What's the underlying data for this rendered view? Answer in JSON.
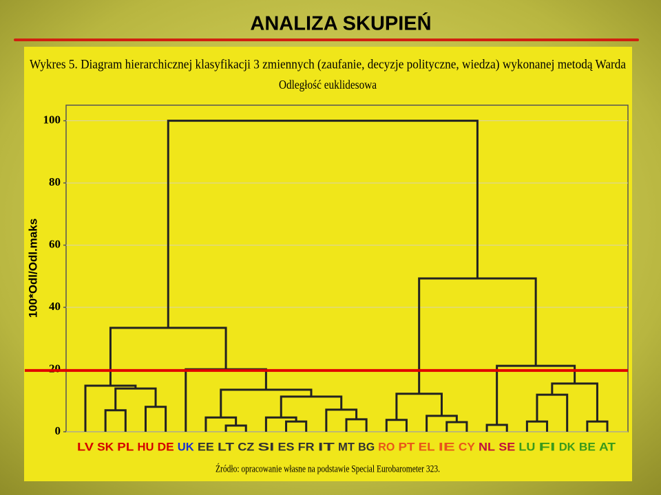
{
  "header": {
    "title": "ANALIZA SKUPIEŃ"
  },
  "chart_data": {
    "type": "dendrogram",
    "title": "Wykres 5. Diagram hierarchicznej klasyfikacji 3 zmiennych (zaufanie, decyzje polityczne, wiedza) wykonanej metodą Warda",
    "subtitle": "Odległość euklidesowa",
    "ylabel": "100*Odl/Odl.maks",
    "source": "Źródło: opracowanie własne na podstawie Special Eurobarometer 323.",
    "categories": [
      "LV",
      "SK",
      "PL",
      "HU",
      "DE",
      "UK",
      "EE",
      "LT",
      "CZ",
      "SI",
      "ES",
      "FR",
      "IT",
      "MT",
      "BG",
      "RO",
      "PT",
      "EL",
      "IE",
      "CY",
      "NL",
      "SE",
      "LU",
      "FI",
      "DK",
      "BE",
      "AT"
    ],
    "category_colors": [
      "#d40000",
      "#d40000",
      "#d40000",
      "#d40000",
      "#d40000",
      "#1a2fd0",
      "#333333",
      "#333333",
      "#333333",
      "#333333",
      "#333333",
      "#333333",
      "#333333",
      "#333333",
      "#333333",
      "#e8551a",
      "#e8551a",
      "#e8551a",
      "#e8551a",
      "#e8551a",
      "#c0103c",
      "#c0103c",
      "#3a9a1a",
      "#3a9a1a",
      "#3a9a1a",
      "#3a9a1a",
      "#3a9a1a"
    ],
    "merges": [
      {
        "children": [
          1,
          2
        ],
        "height": 6.9
      },
      {
        "children": [
          3,
          4
        ],
        "height": 8.0
      },
      {
        "children": [
          27,
          28
        ],
        "height": 13.9
      },
      {
        "children": [
          0,
          29
        ],
        "height": 14.8
      },
      {
        "children": [
          7,
          8
        ],
        "height": 2.0
      },
      {
        "children": [
          6,
          31
        ],
        "height": 4.6
      },
      {
        "children": [
          10,
          11
        ],
        "height": 3.3
      },
      {
        "children": [
          9,
          33
        ],
        "height": 4.6
      },
      {
        "children": [
          13,
          14
        ],
        "height": 4.0
      },
      {
        "children": [
          12,
          35
        ],
        "height": 7.1
      },
      {
        "children": [
          34,
          36
        ],
        "height": 11.3
      },
      {
        "children": [
          32,
          37
        ],
        "height": 13.5
      },
      {
        "children": [
          5,
          38
        ],
        "height": 20.1
      },
      {
        "children": [
          30,
          39
        ],
        "height": 33.4
      },
      {
        "children": [
          15,
          16
        ],
        "height": 3.8
      },
      {
        "children": [
          18,
          19
        ],
        "height": 3.1
      },
      {
        "children": [
          17,
          42
        ],
        "height": 5.1
      },
      {
        "children": [
          41,
          43
        ],
        "height": 12.2
      },
      {
        "children": [
          20,
          21
        ],
        "height": 2.2
      },
      {
        "children": [
          22,
          23
        ],
        "height": 3.3
      },
      {
        "children": [
          46,
          24
        ],
        "height": 11.9
      },
      {
        "children": [
          25,
          26
        ],
        "height": 3.3
      },
      {
        "children": [
          47,
          48
        ],
        "height": 15.5
      },
      {
        "children": [
          45,
          49
        ],
        "height": 21.2
      },
      {
        "children": [
          44,
          50
        ],
        "height": 49.3
      },
      {
        "children": [
          40,
          51
        ],
        "height": 100
      }
    ],
    "cut_height": 19.7,
    "cut_color": "#e00000",
    "link_color": "#222222",
    "ylim": [
      0,
      105
    ],
    "yticks": [
      0,
      20,
      40,
      60,
      80,
      100
    ],
    "grid": true
  }
}
